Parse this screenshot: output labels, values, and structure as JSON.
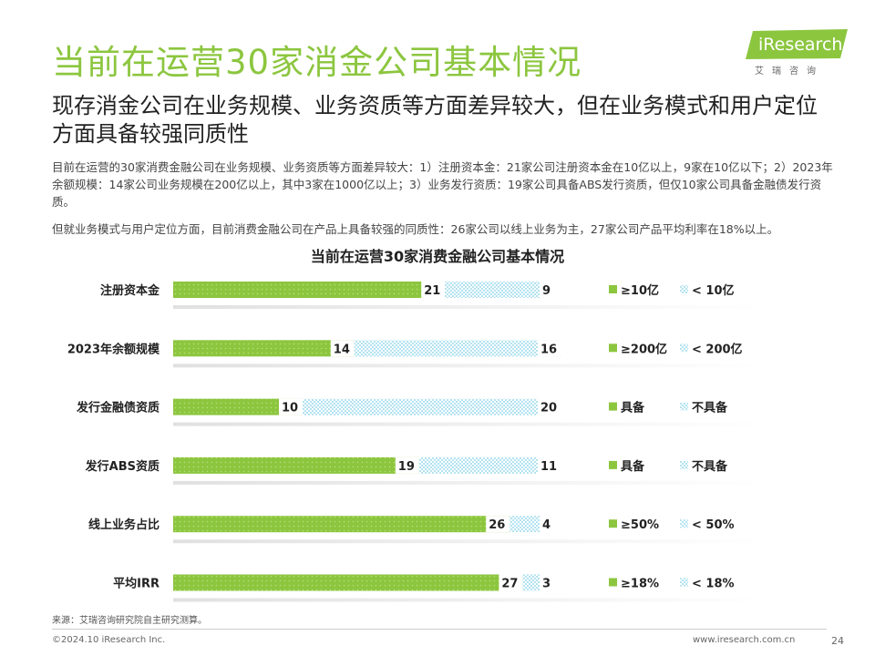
{
  "header": {
    "title": "当前在运营30家消金公司基本情况",
    "logo_text": "iResearch",
    "logo_sub": "艾瑞咨询"
  },
  "subtitle": "现存消金公司在业务规模、业务资质等方面差异较大，但在业务模式和用户定位方面具备较强同质性",
  "paragraphs": [
    "目前在运营的30家消费金融公司在业务规模、业务资质等方面差异较大：1）注册资本金：21家公司注册资本金在10亿以上，9家在10亿以下；2）2023年余额规模：14家公司业务规模在200亿以上，其中3家在1000亿以上；3）业务发行资质：19家公司具备ABS发行资质，但仅10家公司具备金融债发行资质。",
    "但就业务模式与用户定位方面，目前消费金融公司在产品上具备较强的同质性：26家公司以线上业务为主，27家公司产品平均利率在18%以上。"
  ],
  "colors": {
    "accent": "#8cc63f",
    "secondary": "#7dd0e8",
    "text": "#333333"
  },
  "chart_data": {
    "type": "bar",
    "stacked": true,
    "orientation": "horizontal",
    "title": "当前在运营30家消费金融公司基本情况",
    "categories": [
      "注册资本金",
      "2023年余额规模",
      "发行金融债资质",
      "发行ABS资质",
      "线上业务占比",
      "平均IRR"
    ],
    "xlim": [
      0,
      30
    ],
    "rows": [
      {
        "category": "注册资本金",
        "values": [
          21,
          9
        ],
        "legend": [
          "≥10亿",
          "< 10亿"
        ]
      },
      {
        "category": "2023年余额规模",
        "values": [
          14,
          16
        ],
        "legend": [
          "≥200亿",
          "< 200亿"
        ]
      },
      {
        "category": "发行金融债资质",
        "values": [
          10,
          20
        ],
        "legend": [
          "具备",
          "不具备"
        ]
      },
      {
        "category": "发行ABS资质",
        "values": [
          19,
          11
        ],
        "legend": [
          "具备",
          "不具备"
        ]
      },
      {
        "category": "线上业务占比",
        "values": [
          26,
          4
        ],
        "legend": [
          "≥50%",
          "< 50%"
        ]
      },
      {
        "category": "平均IRR",
        "values": [
          27,
          3
        ],
        "legend": [
          "≥18%",
          "< 18%"
        ]
      }
    ]
  },
  "footer": {
    "source": "来源：艾瑞咨询研究院自主研究测算。",
    "copyright": "©2024.10 iResearch Inc.",
    "website": "www.iresearch.com.cn",
    "page": "24"
  }
}
